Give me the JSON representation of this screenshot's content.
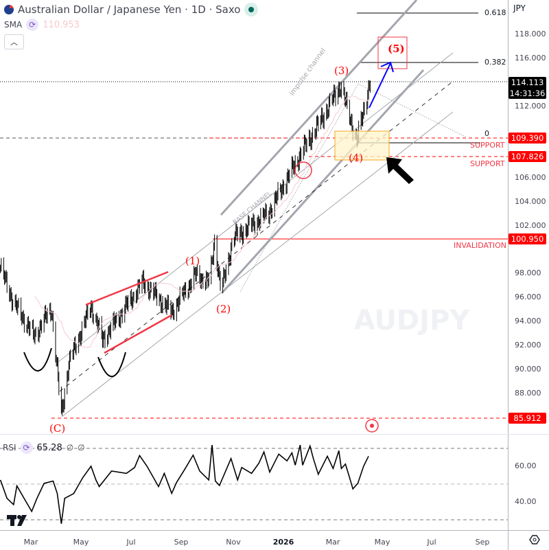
{
  "header": {
    "title": "Australian Dollar / Japanese Yen · 1D · Saxo",
    "flag_icon": "australia-flag-icon",
    "status_icon": "market-open-dot-icon",
    "status_color": "#00695c"
  },
  "sma": {
    "label": "SMA",
    "value": "110.953",
    "value_color": "#f7c9cf"
  },
  "currency": "JPY",
  "watermark": "AUDJPY",
  "price_axis": {
    "ticks": [
      "118.000",
      "116.000",
      "112.000",
      "106.000",
      "104.000",
      "102.000",
      "98.000",
      "96.000",
      "94.000",
      "92.000",
      "90.000",
      "88.000"
    ],
    "tags": [
      {
        "value": "114.113",
        "sub": "14:31:36",
        "color": "#000000"
      },
      {
        "value": "109.390",
        "color": "#ff0000"
      },
      {
        "value": "107.826",
        "color": "#ff0000"
      },
      {
        "value": "100.950",
        "color": "#ff0000"
      },
      {
        "value": "85.912",
        "color": "#ff0000"
      }
    ]
  },
  "time_axis": [
    "Mar",
    "May",
    "Jul",
    "Sep",
    "Nov",
    "2026",
    "Mar",
    "May",
    "Jul",
    "Sep"
  ],
  "annotations": {
    "w1": "(1)",
    "w2": "(2)",
    "w3": "(3)",
    "w4": "(4)",
    "w5": "(5)",
    "wc": "(C)",
    "fib618": "0.618",
    "fib382": "0.382",
    "fib0": "0",
    "support1": "SUPPORT",
    "support2": "SUPPORT",
    "invalidation": "INVALIDATION",
    "impulse": "impulse channel",
    "base": "BASE CHANNEL"
  },
  "rsi": {
    "label": "RSI",
    "value": "65.28",
    "extra1": "∅",
    "extra2": "∅",
    "ticks": [
      "60.00",
      "40.00"
    ],
    "levels": [
      70,
      50,
      30
    ]
  },
  "chart_data": {
    "type": "candlestick",
    "symbol": "AUDJPY",
    "interval": "1D",
    "ylim": [
      85,
      119.5
    ],
    "key_levels": {
      "fib_0.618": 118.9,
      "fib_0.382": 115.8,
      "fib_0": 109.1,
      "support": [
        109.39,
        107.826
      ],
      "invalidation": 100.95,
      "wave_c_low": 85.912,
      "last": 114.113
    },
    "swing_points": [
      [
        "2025-01-23",
        98.5
      ],
      [
        "2025-02-08",
        95.6
      ],
      [
        "2025-03-05",
        92.8
      ],
      [
        "2025-03-26",
        95.1
      ],
      [
        "2025-04-07",
        86.2
      ],
      [
        "2025-04-16",
        90.5
      ],
      [
        "2025-05-13",
        95.3
      ],
      [
        "2025-05-27",
        92.5
      ],
      [
        "2025-06-17",
        94.5
      ],
      [
        "2025-07-15",
        97.3
      ],
      [
        "2025-08-19",
        94.8
      ],
      [
        "2025-09-17",
        97.9
      ],
      [
        "2025-10-04",
        97.3
      ],
      [
        "2025-10-10",
        100.8
      ],
      [
        "2025-10-18",
        96.5
      ],
      [
        "2025-11-02",
        101.0
      ],
      [
        "2025-12-14",
        103.0
      ],
      [
        "2026-01-24",
        108.2
      ],
      [
        "2026-02-11",
        110.2
      ],
      [
        "2026-03-12",
        113.7
      ],
      [
        "2026-04-01",
        109.1
      ],
      [
        "2026-04-17",
        114.1
      ]
    ],
    "rsi_series": [
      [
        "2025-01-23",
        52.3
      ],
      [
        "2025-01-31",
        42
      ],
      [
        "2025-02-08",
        38.5
      ],
      [
        "2025-02-12",
        49
      ],
      [
        "2025-02-22",
        41
      ],
      [
        "2025-03-02",
        34.7
      ],
      [
        "2025-03-08",
        41.6
      ],
      [
        "2025-03-17",
        50.4
      ],
      [
        "2025-03-28",
        51.7
      ],
      [
        "2025-04-02",
        44.8
      ],
      [
        "2025-04-07",
        27.8
      ],
      [
        "2025-04-11",
        42
      ],
      [
        "2025-04-22",
        44.7
      ],
      [
        "2025-05-03",
        53.6
      ],
      [
        "2025-05-13",
        60
      ],
      [
        "2025-05-19",
        52.3
      ],
      [
        "2025-05-23",
        48.6
      ],
      [
        "2025-06-07",
        57.3
      ],
      [
        "2025-06-25",
        56
      ],
      [
        "2025-07-05",
        59.3
      ],
      [
        "2025-07-11",
        66
      ],
      [
        "2025-07-20",
        60
      ],
      [
        "2025-08-03",
        48.6
      ],
      [
        "2025-08-10",
        56
      ],
      [
        "2025-08-19",
        44.8
      ],
      [
        "2025-08-25",
        51
      ],
      [
        "2025-09-04",
        58.4
      ],
      [
        "2025-09-14",
        66.2
      ],
      [
        "2025-09-22",
        57.3
      ],
      [
        "2025-10-03",
        52.3
      ],
      [
        "2025-10-07",
        71.9
      ],
      [
        "2025-10-11",
        51.7
      ],
      [
        "2025-10-16",
        49.2
      ],
      [
        "2025-10-30",
        64.3
      ],
      [
        "2025-11-07",
        52.3
      ],
      [
        "2025-11-12",
        59.3
      ],
      [
        "2025-11-24",
        56
      ],
      [
        "2025-12-03",
        61.8
      ],
      [
        "2025-12-09",
        68
      ],
      [
        "2025-12-16",
        56.7
      ],
      [
        "2025-12-27",
        66.8
      ],
      [
        "2026-01-06",
        63
      ],
      [
        "2026-01-12",
        67.5
      ],
      [
        "2026-01-16",
        60.6
      ],
      [
        "2026-01-22",
        71.9
      ],
      [
        "2026-01-25",
        60.6
      ],
      [
        "2026-02-03",
        71.3
      ],
      [
        "2026-02-07",
        64.3
      ],
      [
        "2026-02-13",
        55.5
      ],
      [
        "2026-02-24",
        65.6
      ],
      [
        "2026-03-03",
        58.7
      ],
      [
        "2026-03-10",
        68.7
      ],
      [
        "2026-03-13",
        58.7
      ],
      [
        "2026-03-18",
        61.2
      ],
      [
        "2026-03-23",
        53.6
      ],
      [
        "2026-03-27",
        47.3
      ],
      [
        "2026-04-02",
        50.4
      ],
      [
        "2026-04-09",
        60
      ],
      [
        "2026-04-15",
        65.6
      ]
    ],
    "rsi_ylim": [
      25,
      75
    ],
    "sma_color": "#f7c9cf",
    "grid": false
  }
}
